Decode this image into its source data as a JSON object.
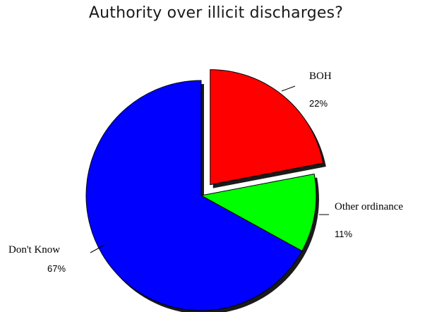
{
  "chart_data": {
    "type": "pie",
    "title": "Authority over illicit discharges?",
    "slices": [
      {
        "label": "BOH",
        "value": 22,
        "value_label": "22%",
        "color": "#ff0000",
        "exploded": true
      },
      {
        "label": "Other ordinance",
        "value": 11,
        "value_label": "11%",
        "color": "#00ff00",
        "exploded": false
      },
      {
        "label": "Don't Know",
        "value": 67,
        "value_label": "67%",
        "color": "#0000ff",
        "exploded": false
      }
    ]
  }
}
